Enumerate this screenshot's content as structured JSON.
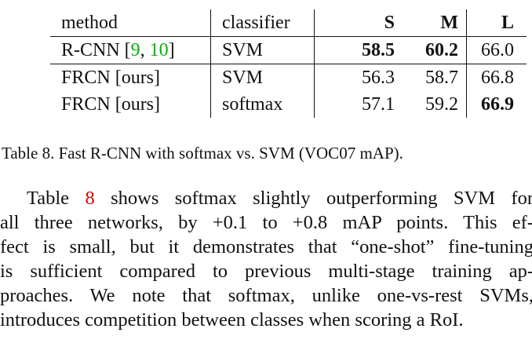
{
  "table": {
    "headers": {
      "method": "method",
      "classifier": "classifier",
      "s": "S",
      "m": "M",
      "l": "L"
    },
    "rows": [
      {
        "method": "R-CNN [",
        "cite_a": "9",
        "sep": ", ",
        "cite_b": "10",
        "close": "]",
        "classifier": "SVM",
        "s": "58.5",
        "m": "60.2",
        "l": "66.0"
      },
      {
        "method": "FRCN [ours]",
        "classifier": "SVM",
        "s": "56.3",
        "m": "58.7",
        "l": "66.8"
      },
      {
        "method": "FRCN [ours]",
        "classifier": "softmax",
        "s": "57.1",
        "m": "59.2",
        "l": "66.9"
      }
    ]
  },
  "caption": "Table 8. Fast R-CNN with softmax vs. SVM (VOC07 mAP).",
  "paragraph": {
    "l1_pre": "Table ",
    "l1_ref": "8",
    "l1_post": " shows softmax slightly outperforming SVM for",
    "l2": "all three networks, by +0.1 to +0.8 mAP points. This ef-",
    "l3": "fect is small, but it demonstrates that “one-shot” fine-tuning",
    "l4": "is sufficient compared to previous multi-stage training ap-",
    "l5": "proaches. We note that softmax, unlike one-vs-rest SVMs,",
    "l6": "introduces competition between classes when scoring a RoI."
  }
}
